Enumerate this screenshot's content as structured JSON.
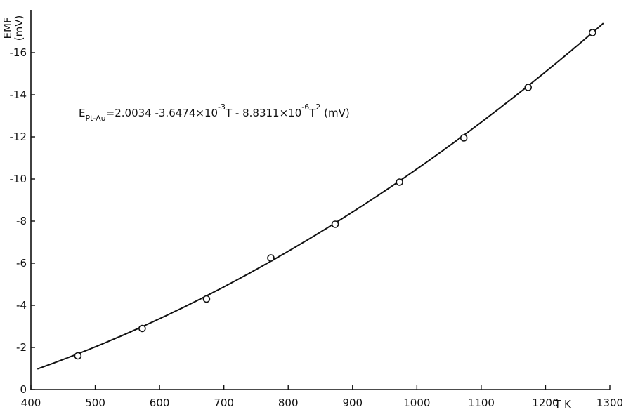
{
  "chart_data": {
    "type": "scatter",
    "title": "",
    "xlabel": "T K",
    "ylabel_line1": "EMF",
    "ylabel_line2": "(mV)",
    "xlim": [
      400,
      1300
    ],
    "ylim": [
      0,
      -18
    ],
    "x_ticks": [
      400,
      500,
      600,
      700,
      800,
      900,
      1000,
      1100,
      1200,
      1300
    ],
    "x_tick_labels": [
      "400",
      "500",
      "600",
      "700",
      "800",
      "900",
      "1000",
      "1100",
      "1200",
      "1300"
    ],
    "y_ticks": [
      0,
      -2,
      -4,
      -6,
      -8,
      -10,
      -12,
      -14,
      -16
    ],
    "y_tick_labels": [
      "0",
      "-2",
      "-4",
      "-6",
      "-8",
      "-10",
      "-12",
      "-14",
      "-16"
    ],
    "grid": false,
    "series": [
      {
        "marker": "open-circle",
        "x": [
          473,
          573,
          673,
          773,
          873,
          973,
          1073,
          1173,
          1273
        ],
        "y": [
          -1.6,
          -2.9,
          -4.3,
          -6.25,
          -7.85,
          -9.85,
          -11.95,
          -14.35,
          -16.95
        ]
      }
    ],
    "fit_curve": {
      "a0": 2.0034,
      "a1": -0.0036474,
      "a2": -8.8311e-06,
      "x_range": [
        410,
        1290
      ]
    },
    "annotation": {
      "main": "E",
      "sub": "Pt-Au",
      "part1": "=2.0034 -3.6474×10",
      "exp1": "-3",
      "part2": "T - 8.8311×10",
      "exp2": "-6",
      "part3": "T",
      "exp3": "2",
      "part4": " (mV)"
    }
  }
}
